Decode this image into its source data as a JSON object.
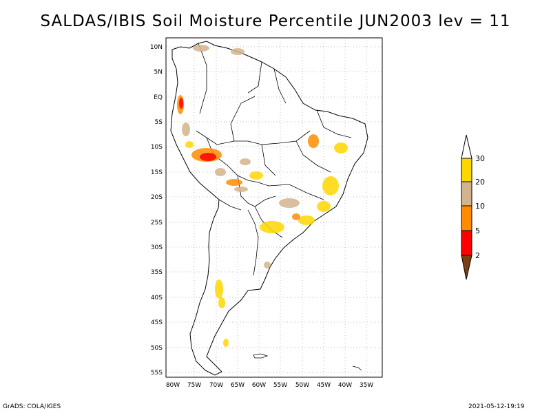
{
  "title": "SALDAS/IBIS Soil Moisture Percentile JUN2003 lev = 11",
  "map": {
    "lat_labels": [
      "10N",
      "5N",
      "EQ",
      "5S",
      "10S",
      "15S",
      "20S",
      "25S",
      "30S",
      "35S",
      "40S",
      "45S",
      "50S",
      "55S"
    ],
    "lon_labels": [
      "80W",
      "75W",
      "70W",
      "65W",
      "60W",
      "55W",
      "50W",
      "45W",
      "40W",
      "35W"
    ],
    "gridlines": true,
    "region": "South America",
    "extent": {
      "lon": [
        -81,
        -34
      ],
      "lat": [
        -56,
        11
      ]
    }
  },
  "colorbar": {
    "levels": [
      "2",
      "5",
      "10",
      "20",
      "30"
    ],
    "colors": {
      "below_2": "#7b3f12",
      "2_5": "#ff0000",
      "5_10": "#ff8c00",
      "10_20": "#d2b48c",
      "20_30": "#ffd700",
      "above_30": "#ffffff"
    }
  },
  "footer": {
    "left": "GrADS: COLA/IGES",
    "right": "2021-05-12-19:19"
  }
}
